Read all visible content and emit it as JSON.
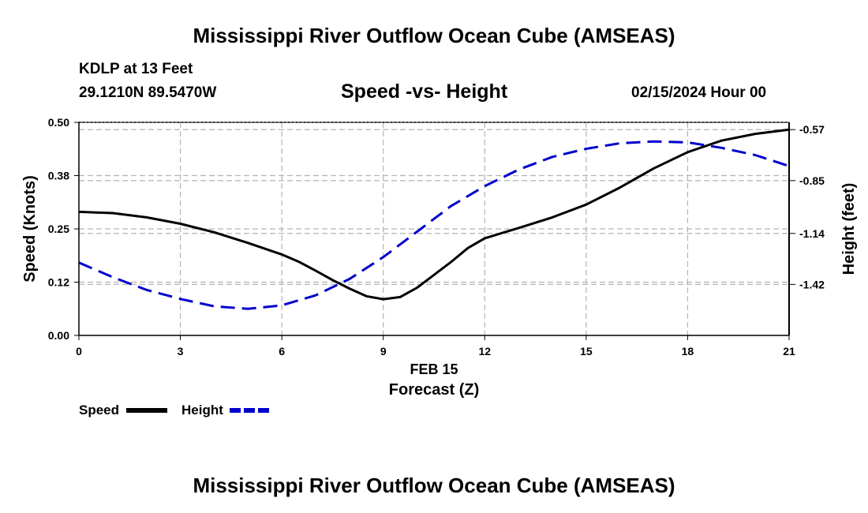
{
  "header": {
    "title": "Mississippi River Outflow Ocean Cube (AMSEAS)",
    "station": "KDLP at 13 Feet",
    "coords": "29.1210N  89.5470W",
    "subtitle": "Speed -vs- Height",
    "datetime": "02/15/2024 Hour 00"
  },
  "footer": {
    "title": "Mississippi River Outflow Ocean Cube (AMSEAS)"
  },
  "colors": {
    "speed": "#000000",
    "height": "#0000cc",
    "grid": "#b4b4b4"
  },
  "chart_data": {
    "type": "line",
    "title": "Speed -vs- Height",
    "xlabel": "Forecast (Z)",
    "xdate_label": "FEB 15",
    "ylabel": "Speed (Knots)",
    "y2label": "Height (feet)",
    "xlim": [
      0,
      21
    ],
    "ylim": [
      0,
      0.5
    ],
    "y2lim": [
      -1.7,
      -0.53
    ],
    "xticks": [
      0,
      3,
      6,
      9,
      12,
      15,
      18,
      21
    ],
    "yticks": [
      0,
      0.125,
      0.25,
      0.375,
      0.5
    ],
    "ytick_labels": [
      "0.00",
      "0.12",
      "0.25",
      "0.38",
      "0.50"
    ],
    "y2ticks": [
      -1.42,
      -1.14,
      -0.85,
      -0.57
    ],
    "y2tick_labels": [
      "-1.42",
      "-1.14",
      "-0.85",
      "-0.57"
    ],
    "grid": true,
    "legend": [
      "Speed",
      "Height"
    ],
    "series": [
      {
        "name": "Speed",
        "axis": "left",
        "style": "solid",
        "x": [
          0,
          1,
          2,
          3,
          4,
          5,
          6,
          6.5,
          7,
          7.5,
          8,
          8.5,
          9,
          9.5,
          10,
          10.5,
          11,
          11.5,
          12,
          13,
          14,
          15,
          16,
          17,
          18,
          19,
          20,
          21
        ],
        "values": [
          0.29,
          0.287,
          0.277,
          0.262,
          0.242,
          0.217,
          0.19,
          0.173,
          0.152,
          0.13,
          0.11,
          0.092,
          0.085,
          0.09,
          0.112,
          0.142,
          0.172,
          0.205,
          0.228,
          0.252,
          0.277,
          0.307,
          0.347,
          0.392,
          0.43,
          0.457,
          0.473,
          0.483
        ]
      },
      {
        "name": "Height",
        "axis": "right",
        "style": "dashed",
        "x": [
          0,
          1,
          2,
          3,
          4,
          5,
          6,
          7,
          8,
          9,
          10,
          11,
          12,
          13,
          14,
          15,
          16,
          17,
          18,
          19,
          20,
          21
        ],
        "values": [
          -1.3,
          -1.38,
          -1.45,
          -1.5,
          -1.54,
          -1.554,
          -1.535,
          -1.48,
          -1.39,
          -1.27,
          -1.13,
          -0.99,
          -0.88,
          -0.79,
          -0.72,
          -0.675,
          -0.645,
          -0.635,
          -0.64,
          -0.67,
          -0.71,
          -0.77
        ]
      }
    ]
  }
}
